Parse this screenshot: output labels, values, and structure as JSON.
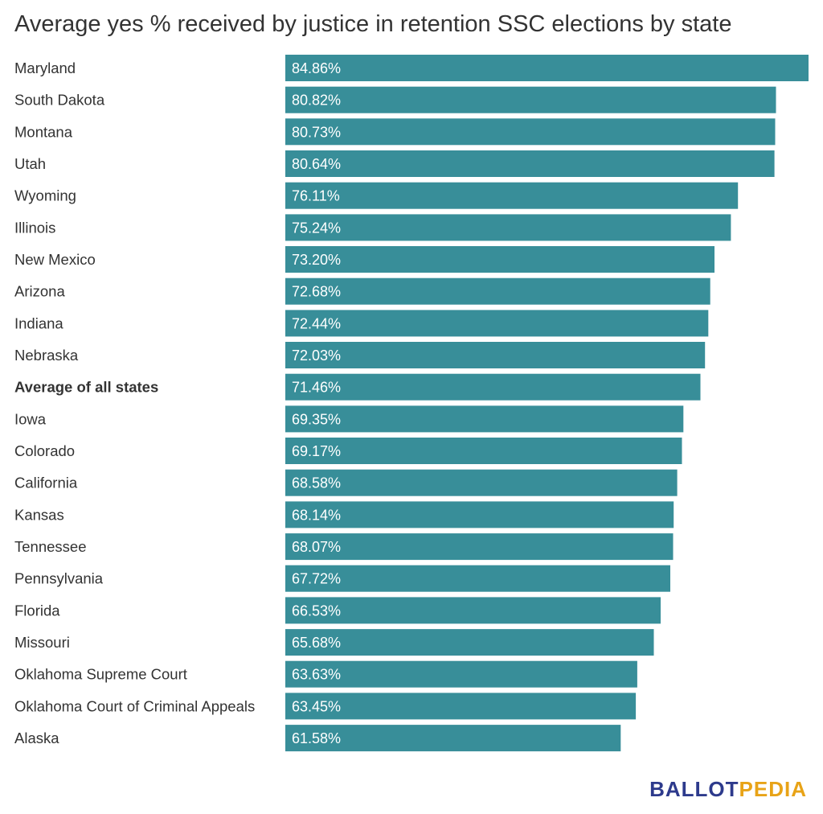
{
  "chart_data": {
    "type": "bar",
    "orientation": "horizontal",
    "title": "Average yes % received by justice in retention SSC elections by state",
    "categories": [
      "Maryland",
      "South Dakota",
      "Montana",
      "Utah",
      "Wyoming",
      "Illinois",
      "New Mexico",
      "Arizona",
      "Indiana",
      "Nebraska",
      "Average of all states",
      "Iowa",
      "Colorado",
      "California",
      "Kansas",
      "Tennessee",
      "Pennsylvania",
      "Florida",
      "Missouri",
      "Oklahoma Supreme Court",
      "Oklahoma Court of Criminal Appeals",
      "Alaska"
    ],
    "values": [
      84.86,
      80.82,
      80.73,
      80.64,
      76.11,
      75.24,
      73.2,
      72.68,
      72.44,
      72.03,
      71.46,
      69.35,
      69.17,
      68.58,
      68.14,
      68.07,
      67.72,
      66.53,
      65.68,
      63.63,
      63.45,
      61.58
    ],
    "value_labels": [
      "84.86%",
      "80.82%",
      "80.73%",
      "80.64%",
      "76.11%",
      "75.24%",
      "73.20%",
      "72.68%",
      "72.44%",
      "72.03%",
      "71.46%",
      "69.35%",
      "69.17%",
      "68.58%",
      "68.14%",
      "68.07%",
      "67.72%",
      "66.53%",
      "65.68%",
      "63.63%",
      "63.45%",
      "61.58%"
    ],
    "bold_categories": [
      "Average of all states"
    ],
    "xlabel": "",
    "ylabel": "",
    "xlim": [
      0,
      84.86
    ],
    "axis_baseline_value": 20,
    "grid": false,
    "legend": "none",
    "bar_color": "#388e99"
  },
  "branding": {
    "part1": "BALLOT",
    "part2": "PEDIA",
    "color1": "#2d3a8c",
    "color2": "#e8a317"
  }
}
